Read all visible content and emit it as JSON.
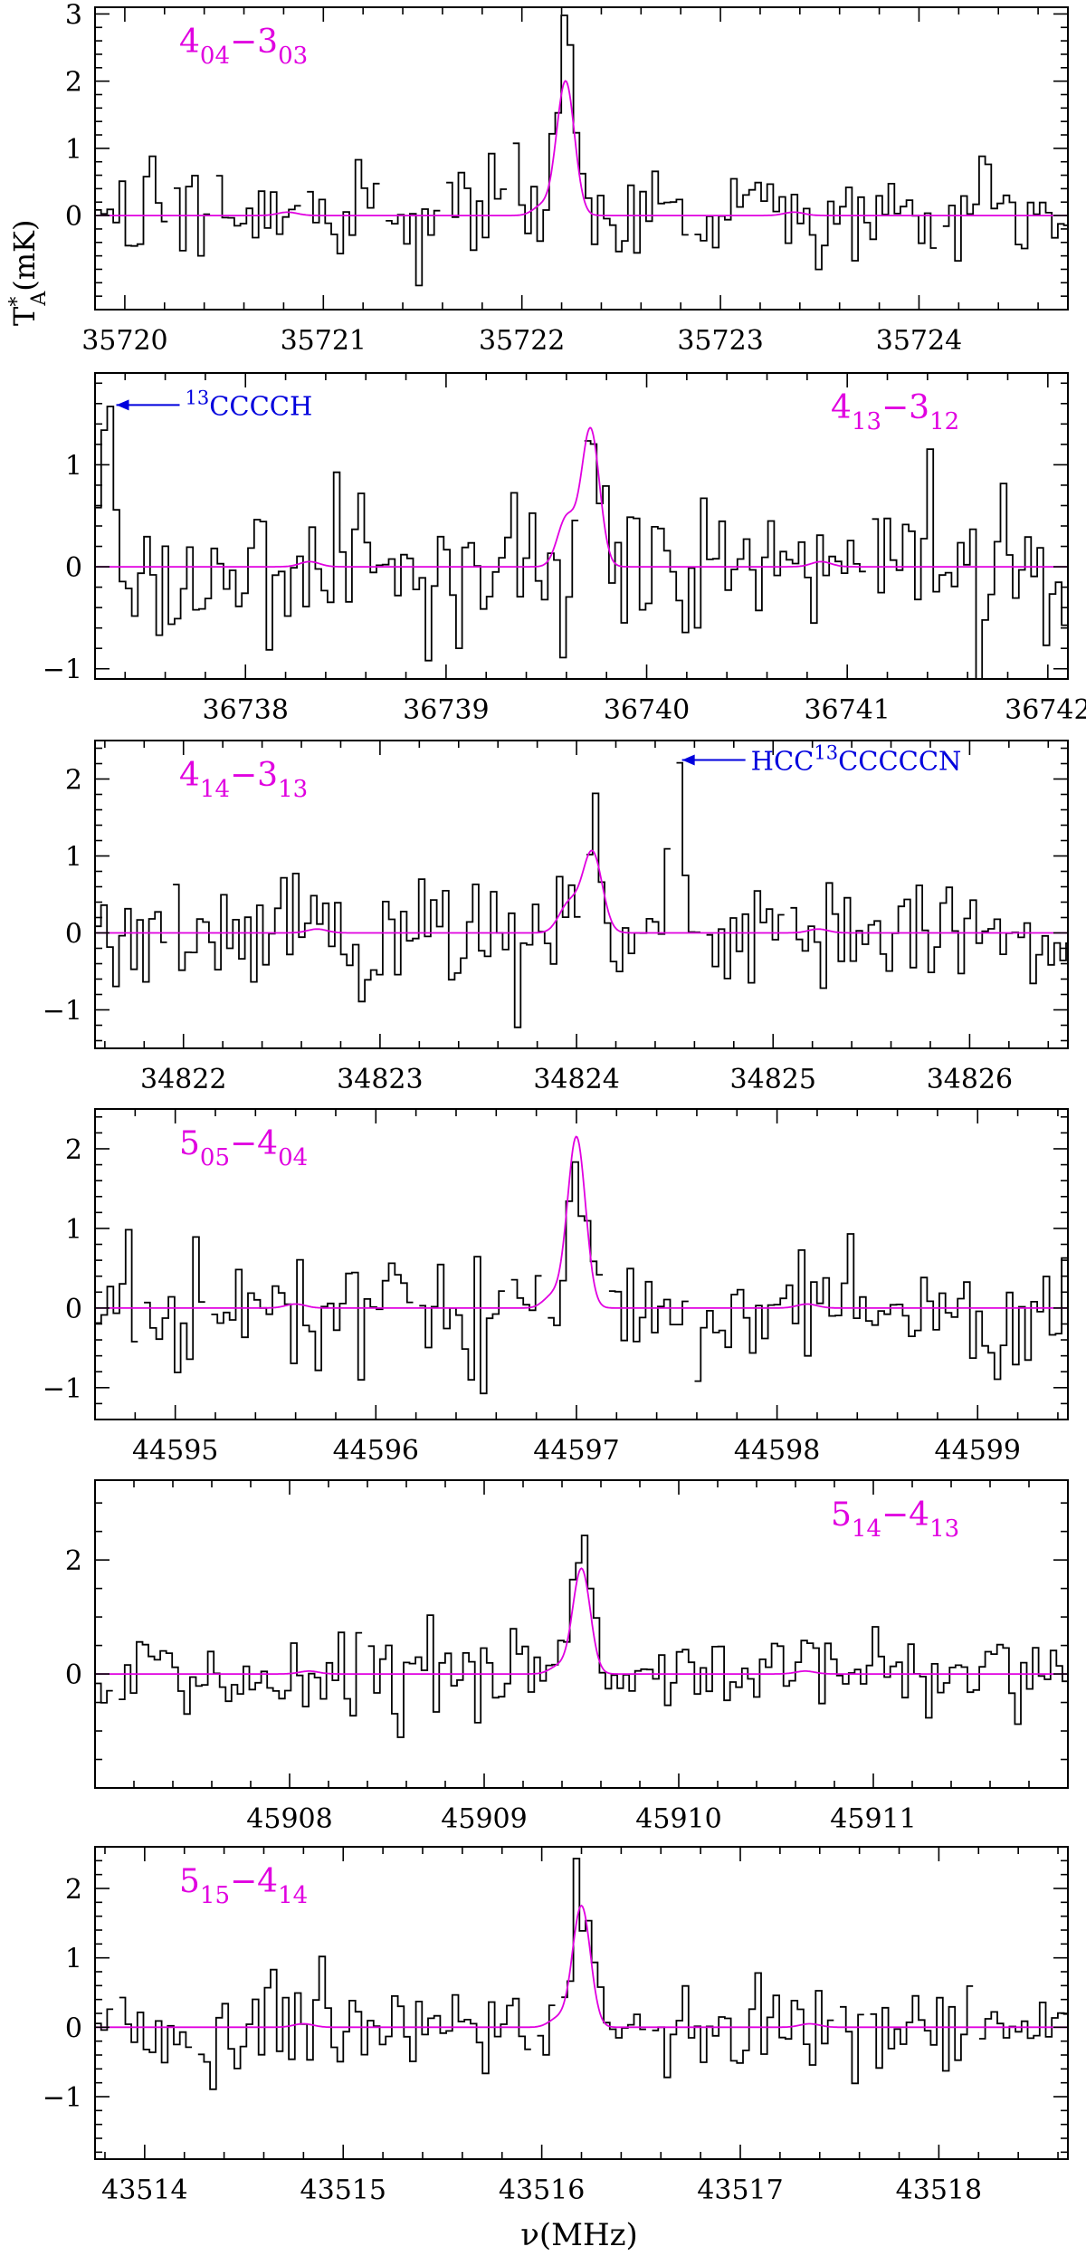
{
  "figure": {
    "ylabel_main": "T",
    "ylabel_sup": "*",
    "ylabel_sub": "A",
    "ylabel_unit": "(mK)",
    "xlabel": "ν(MHz)"
  },
  "colors": {
    "data": "#000000",
    "model": "#e000e0",
    "annotation": "#0000dd",
    "frame": "#000000"
  },
  "chart_data": [
    {
      "type": "line",
      "label": {
        "main": "4",
        "sub1": "04",
        "dash": "−",
        "main2": "3",
        "sub2": "03",
        "position": "top-left"
      },
      "xlim": [
        35719.85,
        35724.75
      ],
      "ylim": [
        -1.4,
        3.1
      ],
      "xticks": [
        35720,
        35721,
        35722,
        35723,
        35724
      ],
      "xtick_labels": [
        "35720",
        "35721",
        "35722",
        "35723",
        "35724"
      ],
      "yticks": [
        0,
        1,
        2,
        3
      ],
      "ytick_labels": [
        "0",
        "1",
        "2",
        "3"
      ],
      "line_center": 35722.22,
      "line_peak": 2.0,
      "line_width": 0.045,
      "spike_height": 2.85,
      "annotations": []
    },
    {
      "type": "line",
      "label": {
        "main": "4",
        "sub1": "13",
        "dash": "−",
        "main2": "3",
        "sub2": "12",
        "position": "top-right"
      },
      "xlim": [
        37737.25,
        36742.1
      ],
      "ylim": [
        -1.1,
        1.9
      ],
      "xticks": [
        36738,
        36739,
        36740,
        36741,
        36742
      ],
      "xtick_labels": [
        "36738",
        "36739",
        "36740",
        "36741",
        "36742"
      ],
      "yticks": [
        -1,
        0,
        1
      ],
      "ytick_labels": [
        "−1",
        "0",
        "1"
      ],
      "line_center": 36739.72,
      "line_peak": 1.35,
      "line_width": 0.045,
      "spike_height": 1.5,
      "annotations": [
        {
          "text_sup": "13",
          "text": "CCCCH",
          "x": 36737.32,
          "y": 1.55
        }
      ]
    },
    {
      "type": "line",
      "label": {
        "main": "4",
        "sub1": "14",
        "dash": "−",
        "main2": "3",
        "sub2": "13",
        "position": "top-left"
      },
      "xlim": [
        34821.55,
        34826.5
      ],
      "ylim": [
        -1.5,
        2.5
      ],
      "xticks": [
        34822,
        34823,
        34824,
        34825,
        34826
      ],
      "xtick_labels": [
        "34822",
        "34823",
        "34824",
        "34825",
        "34826"
      ],
      "yticks": [
        -1,
        0,
        1,
        2
      ],
      "ytick_labels": [
        "−1",
        "0",
        "1",
        "2"
      ],
      "line_center": 34824.08,
      "line_peak": 1.05,
      "line_width": 0.05,
      "spike_height": 1.25,
      "annotations": [
        {
          "text_pre": "HCC",
          "text_sup": "13",
          "text": "CCCCCN",
          "x": 34824.5,
          "y": 2.2
        }
      ]
    },
    {
      "type": "line",
      "label": {
        "main": "5",
        "sub1": "05",
        "dash": "−",
        "main2": "4",
        "sub2": "04",
        "position": "top-left"
      },
      "xlim": [
        44594.6,
        44599.45
      ],
      "ylim": [
        -1.4,
        2.5
      ],
      "xticks": [
        44595,
        44596,
        44597,
        44598,
        44599
      ],
      "xtick_labels": [
        "44595",
        "44596",
        "44597",
        "44598",
        "44599"
      ],
      "yticks": [
        -1,
        0,
        1,
        2
      ],
      "ytick_labels": [
        "−1",
        "0",
        "1",
        "2"
      ],
      "line_center": 44597.0,
      "line_peak": 2.15,
      "line_width": 0.045,
      "spike_height": 2.0,
      "annotations": []
    },
    {
      "type": "line",
      "label": {
        "main": "5",
        "sub1": "14",
        "dash": "−",
        "main2": "4",
        "sub2": "13",
        "position": "top-right"
      },
      "xlim": [
        45907.0,
        45912.0
      ],
      "ylim": [
        -2.0,
        3.4
      ],
      "xticks": [
        45908,
        45909,
        45910,
        45911
      ],
      "xtick_labels": [
        "45908",
        "45909",
        "45910",
        "45911"
      ],
      "yticks": [
        0,
        2
      ],
      "ytick_labels": [
        "0",
        "2"
      ],
      "line_center": 45909.5,
      "line_peak": 1.85,
      "line_width": 0.045,
      "spike_height": 2.3,
      "annotations": []
    },
    {
      "type": "line",
      "label": {
        "main": "5",
        "sub1": "15",
        "dash": "−",
        "main2": "4",
        "sub2": "14",
        "position": "top-left"
      },
      "xlim": [
        43513.75,
        43518.65
      ],
      "ylim": [
        -1.9,
        2.6
      ],
      "xticks": [
        43514,
        43515,
        43516,
        43517,
        43518
      ],
      "xtick_labels": [
        "43514",
        "43515",
        "43516",
        "43517",
        "43518"
      ],
      "yticks": [
        -1,
        0,
        1,
        2
      ],
      "ytick_labels": [
        "−1",
        "0",
        "1",
        "2"
      ],
      "line_center": 43516.2,
      "line_peak": 1.75,
      "line_width": 0.045,
      "spike_height": 1.75,
      "annotations": []
    }
  ]
}
